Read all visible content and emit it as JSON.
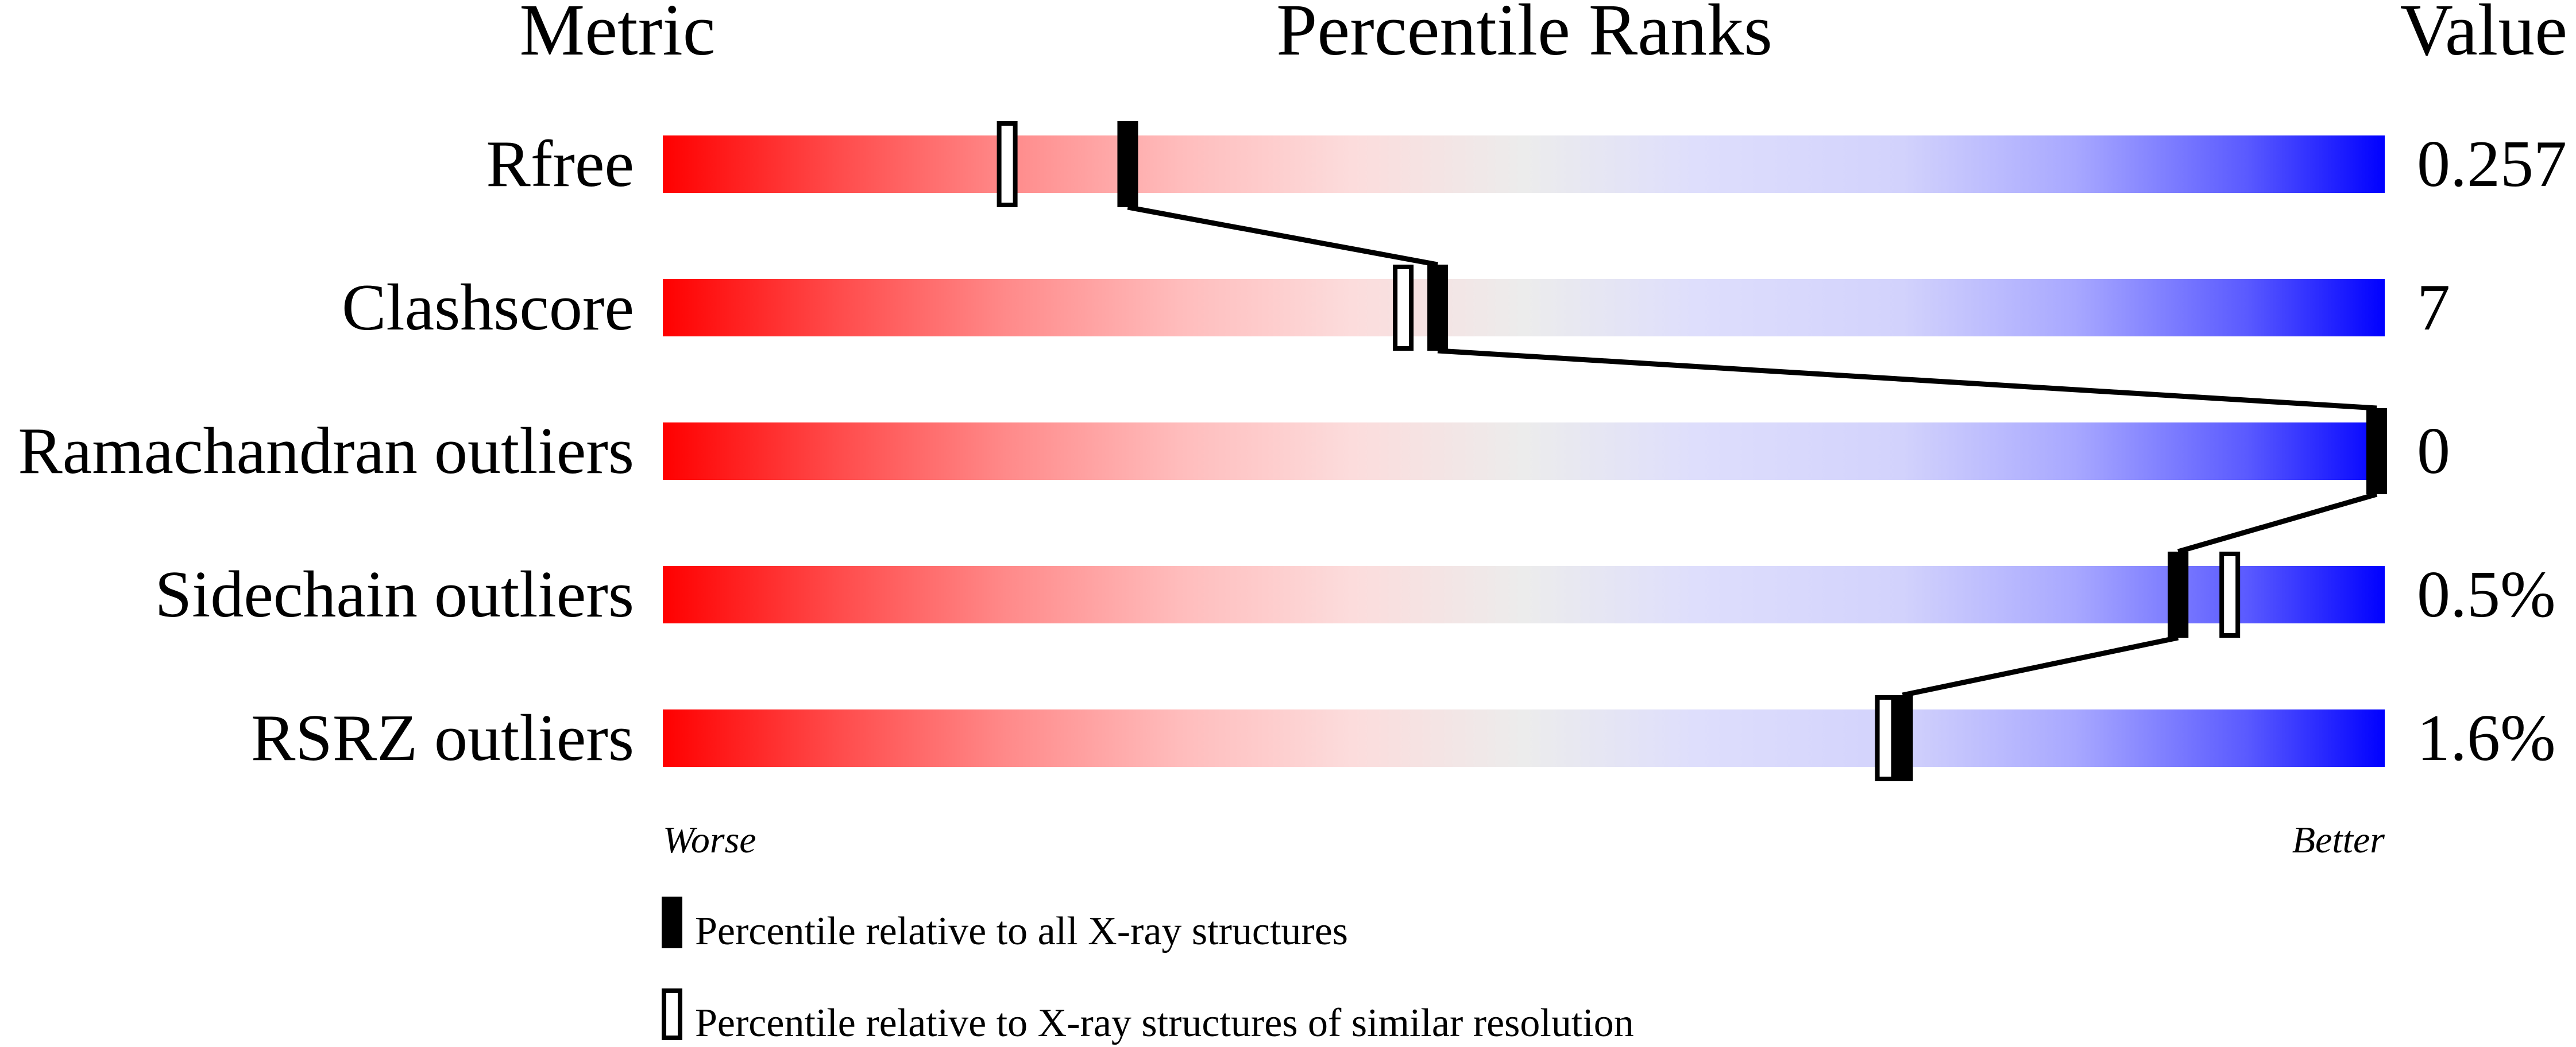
{
  "chart_data": {
    "type": "bar",
    "subtype": "percentile-slider",
    "headers": {
      "metric": "Metric",
      "ranks": "Percentile Ranks",
      "value": "Value"
    },
    "xlim": [
      0,
      100
    ],
    "metrics": [
      {
        "name": "Rfree",
        "value": "0.257",
        "percentile_all": 27,
        "percentile_similar": 20
      },
      {
        "name": "Clashscore",
        "value": "7",
        "percentile_all": 45,
        "percentile_similar": 43
      },
      {
        "name": "Ramachandran outliers",
        "value": "0",
        "percentile_all": 100,
        "percentile_similar": 100
      },
      {
        "name": "Sidechain outliers",
        "value": "0.5%",
        "percentile_all": 88,
        "percentile_similar": 91
      },
      {
        "name": "RSRZ outliers",
        "value": "1.6%",
        "percentile_all": 72,
        "percentile_similar": 71
      }
    ],
    "axis_labels": {
      "left": "Worse",
      "right": "Better"
    },
    "legend": [
      {
        "marker": "filled",
        "label": "Percentile relative to all X-ray structures"
      },
      {
        "marker": "hollow",
        "label": "Percentile relative to X-ray structures of similar resolution"
      }
    ],
    "colors": {
      "worse": "#ff0000",
      "middle": "#eeeeee",
      "better": "#0000ff",
      "marker": "#000000"
    }
  }
}
